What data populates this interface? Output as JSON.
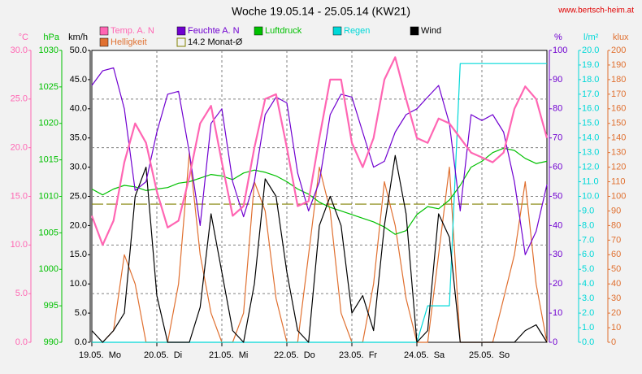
{
  "chart_data": {
    "type": "line",
    "title": "Woche 19.05.14 - 25.05.14 (KW21)",
    "source": "www.bertsch-heim.at",
    "grid": true,
    "xlim": [
      0,
      168
    ],
    "xticks": [
      {
        "value": 0,
        "label": "19.05.  Mo"
      },
      {
        "value": 24,
        "label": "20.05.  Di"
      },
      {
        "value": 48,
        "label": "21.05.  Mi"
      },
      {
        "value": 72,
        "label": "22.05.  Do"
      },
      {
        "value": 96,
        "label": "23.05.  Fr"
      },
      {
        "value": 120,
        "label": "24.05.  Sa"
      },
      {
        "value": 144,
        "label": "25.05.  So"
      }
    ],
    "x": [
      0,
      4,
      8,
      12,
      16,
      20,
      24,
      28,
      32,
      36,
      40,
      44,
      48,
      52,
      56,
      60,
      64,
      68,
      72,
      76,
      80,
      84,
      88,
      92,
      96,
      100,
      104,
      108,
      112,
      116,
      120,
      124,
      128,
      132,
      136,
      140,
      144,
      148,
      152,
      156,
      160,
      164,
      168
    ],
    "axes": [
      {
        "label": "°C",
        "side": "left",
        "color": "#ff66b3",
        "lim": [
          0,
          30
        ],
        "ticks": [
          {
            "value": 0,
            "label": "0.0"
          },
          {
            "value": 5,
            "label": "5.0"
          },
          {
            "value": 10,
            "label": "10.0"
          },
          {
            "value": 15,
            "label": "15.0"
          },
          {
            "value": 20,
            "label": "20.0"
          },
          {
            "value": 25,
            "label": "25.0"
          },
          {
            "value": 30,
            "label": "30.0"
          }
        ]
      },
      {
        "label": "hPa",
        "side": "left",
        "color": "#00c000",
        "lim": [
          990,
          1030
        ],
        "ticks": [
          990,
          995,
          1000,
          1005,
          1010,
          1015,
          1020,
          1025,
          1030
        ]
      },
      {
        "label": "km/h",
        "side": "left",
        "color": "#000000",
        "lim": [
          0,
          50
        ],
        "ticks": [
          {
            "value": 0,
            "label": "0.0"
          },
          {
            "value": 5,
            "label": "5.0"
          },
          {
            "value": 10,
            "label": "10.0"
          },
          {
            "value": 15,
            "label": "15.0"
          },
          {
            "value": 20,
            "label": "20.0"
          },
          {
            "value": 25,
            "label": "25.0"
          },
          {
            "value": 30,
            "label": "30.0"
          },
          {
            "value": 35,
            "label": "35.0"
          },
          {
            "value": 40,
            "label": "40.0"
          },
          {
            "value": 45,
            "label": "45.0"
          },
          {
            "value": 50,
            "label": "50.0"
          }
        ]
      },
      {
        "label": "%",
        "side": "right",
        "color": "#7000d0",
        "lim": [
          0,
          100
        ],
        "ticks": [
          0,
          10,
          20,
          30,
          40,
          50,
          60,
          70,
          80,
          90,
          100
        ]
      },
      {
        "label": "l/m²",
        "side": "right",
        "color": "#00d8d8",
        "lim": [
          0,
          20
        ],
        "ticks": [
          {
            "value": 0,
            "label": "0.0"
          },
          {
            "value": 1,
            "label": "1.0"
          },
          {
            "value": 2,
            "label": "2.0"
          },
          {
            "value": 3,
            "label": "3.0"
          },
          {
            "value": 4,
            "label": "4.0"
          },
          {
            "value": 5,
            "label": "5.0"
          },
          {
            "value": 6,
            "label": "6.0"
          },
          {
            "value": 7,
            "label": "7.0"
          },
          {
            "value": 8,
            "label": "8.0"
          },
          {
            "value": 9,
            "label": "9.0"
          },
          {
            "value": 10,
            "label": "10.0"
          },
          {
            "value": 11,
            "label": "11.0"
          },
          {
            "value": 12,
            "label": "12.0"
          },
          {
            "value": 13,
            "label": "13.0"
          },
          {
            "value": 14,
            "label": "14.0"
          },
          {
            "value": 15,
            "label": "15.0"
          },
          {
            "value": 16,
            "label": "16.0"
          },
          {
            "value": 17,
            "label": "17.0"
          },
          {
            "value": 18,
            "label": "18.0"
          },
          {
            "value": 19,
            "label": "19.0"
          },
          {
            "value": 20,
            "label": "20.0"
          }
        ]
      },
      {
        "label": "klux",
        "side": "right",
        "color": "#e07030",
        "lim": [
          0,
          200
        ],
        "ticks": [
          0,
          10,
          20,
          30,
          40,
          50,
          60,
          70,
          80,
          90,
          100,
          110,
          120,
          130,
          140,
          150,
          160,
          170,
          180,
          190,
          200
        ]
      }
    ],
    "series": [
      {
        "name": "Helligkeit",
        "color": "#e07030",
        "axis": "klux",
        "values": [
          0,
          0,
          8,
          60,
          40,
          0,
          0,
          0,
          40,
          130,
          60,
          20,
          0,
          0,
          20,
          110,
          90,
          30,
          0,
          0,
          60,
          120,
          90,
          20,
          0,
          0,
          40,
          110,
          80,
          30,
          0,
          0,
          60,
          120,
          0,
          0,
          0,
          0,
          30,
          60,
          110,
          40,
          0
        ]
      },
      {
        "name": "Regen",
        "color": "#00d8d8",
        "axis": "l/m²",
        "values": [
          0,
          0,
          0,
          0,
          0,
          0,
          0,
          0,
          0,
          0,
          0,
          0,
          0,
          0,
          0,
          0,
          0,
          0,
          0,
          0,
          0,
          0,
          0,
          0,
          0,
          0,
          0,
          0,
          0,
          0,
          0,
          2.5,
          2.5,
          2.5,
          19.1,
          19.1,
          19.1,
          19.1,
          19.1,
          19.1,
          19.1,
          19.1,
          19.1
        ]
      },
      {
        "name": "Luftdruck",
        "color": "#00c000",
        "axis": "hPa",
        "values": [
          1011.0,
          1010.2,
          1011.0,
          1011.5,
          1011.3,
          1010.8,
          1011.0,
          1011.2,
          1011.8,
          1012.0,
          1012.5,
          1013.0,
          1012.8,
          1012.3,
          1013.2,
          1013.6,
          1013.3,
          1012.8,
          1012.0,
          1011.0,
          1010.3,
          1009.2,
          1008.5,
          1008.0,
          1007.5,
          1007.0,
          1006.5,
          1005.8,
          1004.8,
          1005.3,
          1007.5,
          1008.6,
          1008.3,
          1009.5,
          1011.5,
          1014.0,
          1014.8,
          1016.0,
          1016.6,
          1016.3,
          1015.2,
          1014.5,
          1014.8
        ]
      },
      {
        "name": "Wind",
        "color": "#000000",
        "axis": "km/h",
        "values": [
          2,
          0,
          2,
          5,
          25,
          30,
          8,
          0,
          0,
          0,
          6,
          22,
          12,
          2,
          0,
          10,
          28,
          25,
          12,
          2,
          0,
          20,
          25,
          20,
          5,
          8,
          2,
          20,
          32,
          22,
          0,
          2,
          22,
          18,
          0,
          0,
          0,
          0,
          0,
          0,
          2,
          3,
          0
        ]
      },
      {
        "name": "Feuchte A. N",
        "color": "#7000d0",
        "axis": "%",
        "values": [
          88,
          93,
          94,
          80,
          52,
          55,
          72,
          85,
          86,
          65,
          40,
          75,
          80,
          55,
          43,
          55,
          78,
          84,
          82,
          58,
          45,
          55,
          78,
          85,
          84,
          72,
          60,
          62,
          72,
          78,
          80,
          84,
          88,
          75,
          45,
          78,
          76,
          78,
          72,
          55,
          30,
          38,
          54
        ]
      },
      {
        "name": "Temp. A. N",
        "color": "#ff66b3",
        "axis": "°C",
        "values": [
          13.0,
          10.0,
          12.5,
          18.5,
          22.5,
          20.5,
          15.5,
          11.8,
          12.5,
          17.0,
          22.5,
          24.3,
          18.5,
          13.0,
          14.0,
          20.0,
          25.0,
          25.5,
          20.0,
          14.0,
          14.5,
          21.0,
          27.0,
          27.0,
          20.5,
          18.0,
          21.0,
          27.0,
          29.3,
          25.0,
          21.0,
          20.5,
          23.0,
          22.5,
          21.0,
          19.5,
          19.0,
          18.5,
          19.5,
          24.0,
          26.3,
          25.0,
          21.0
        ]
      }
    ],
    "reference": {
      "name": "14.2 Monat-Ø",
      "value": 14.2,
      "axis": "°C",
      "color": "#808000"
    }
  }
}
